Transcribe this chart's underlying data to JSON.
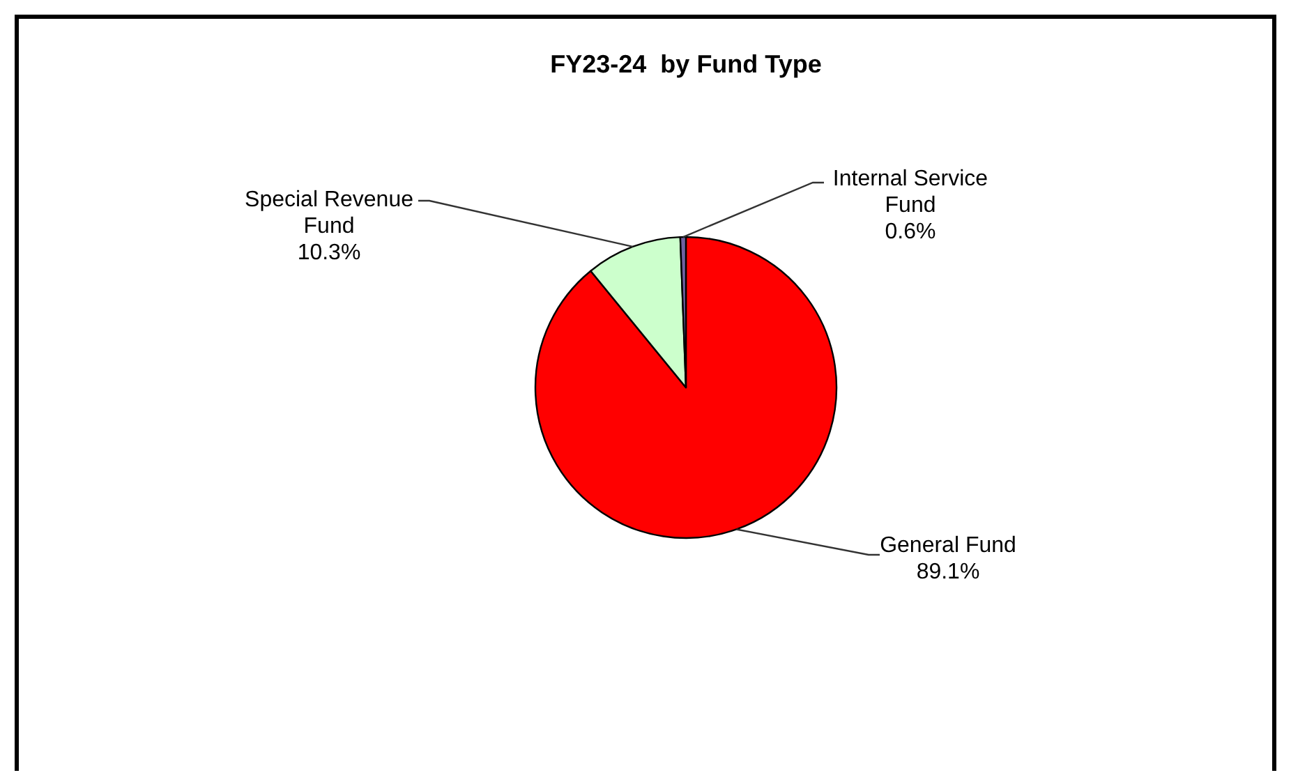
{
  "chart_data": {
    "type": "pie",
    "title": "FY23-24  by Fund Type",
    "categories": [
      "General Fund",
      "Special Revenue Fund",
      "Internal Service Fund"
    ],
    "values": [
      89.1,
      10.3,
      0.6
    ],
    "colors": [
      "#ff0000",
      "#ccffcc",
      "#7060a0"
    ],
    "value_labels": [
      "89.1%",
      "10.3%",
      "0.6%"
    ]
  }
}
